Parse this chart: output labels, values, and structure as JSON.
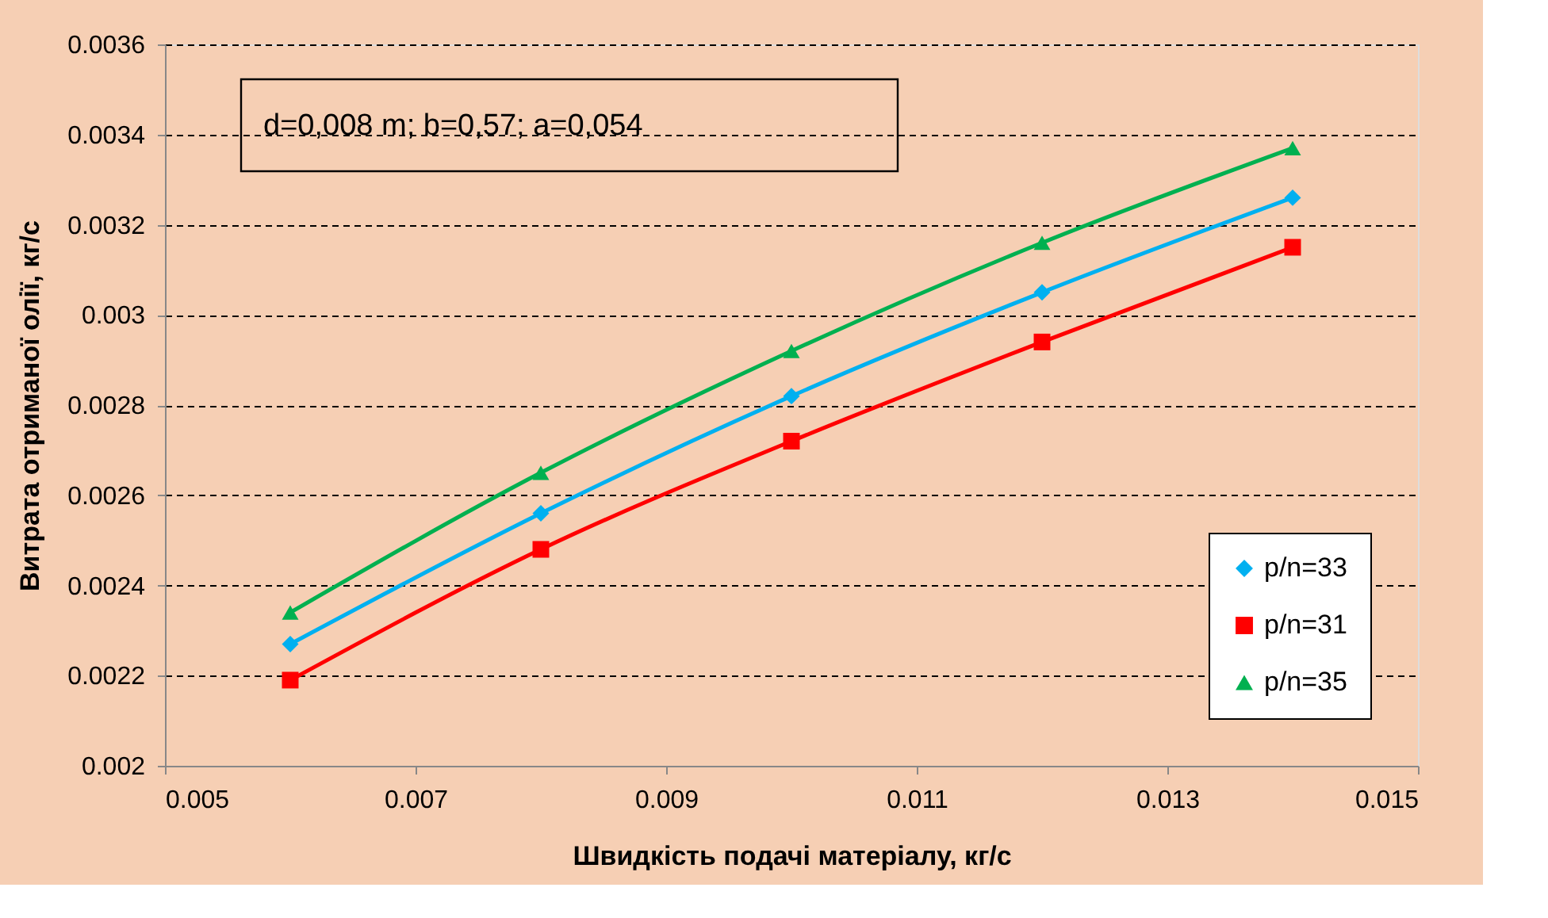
{
  "chart_data": {
    "type": "line",
    "xlabel": "Швидкість подачі матеріалу, кг/с",
    "ylabel": "Витрата отриманої олії, кг/с",
    "annotations": [
      "d=0,008 m; b=0,57; a=0,054"
    ],
    "x": [
      0.006,
      0.008,
      0.01,
      0.012,
      0.014
    ],
    "series": [
      {
        "name": "p/n=33",
        "color": "#00b0f0",
        "marker": "diamond",
        "values": [
          0.00227,
          0.00256,
          0.00282,
          0.00305,
          0.00326
        ]
      },
      {
        "name": "p/n=31",
        "color": "#ff0000",
        "marker": "square",
        "values": [
          0.00219,
          0.00248,
          0.00272,
          0.00294,
          0.00315
        ]
      },
      {
        "name": "p/n=35",
        "color": "#00b050",
        "marker": "triangle",
        "values": [
          0.00234,
          0.00265,
          0.00292,
          0.00316,
          0.00337
        ]
      }
    ],
    "xlim": [
      0.005,
      0.015
    ],
    "xticks": [
      0.005,
      0.007,
      0.009,
      0.011,
      0.013,
      0.015
    ],
    "ylim": [
      0.002,
      0.0036
    ],
    "yticks": [
      0.002,
      0.0022,
      0.0024,
      0.0026,
      0.0028,
      0.003,
      0.0032,
      0.0034,
      0.0036
    ],
    "grid": "y",
    "line_style": "solid",
    "legend": "bottom right"
  }
}
